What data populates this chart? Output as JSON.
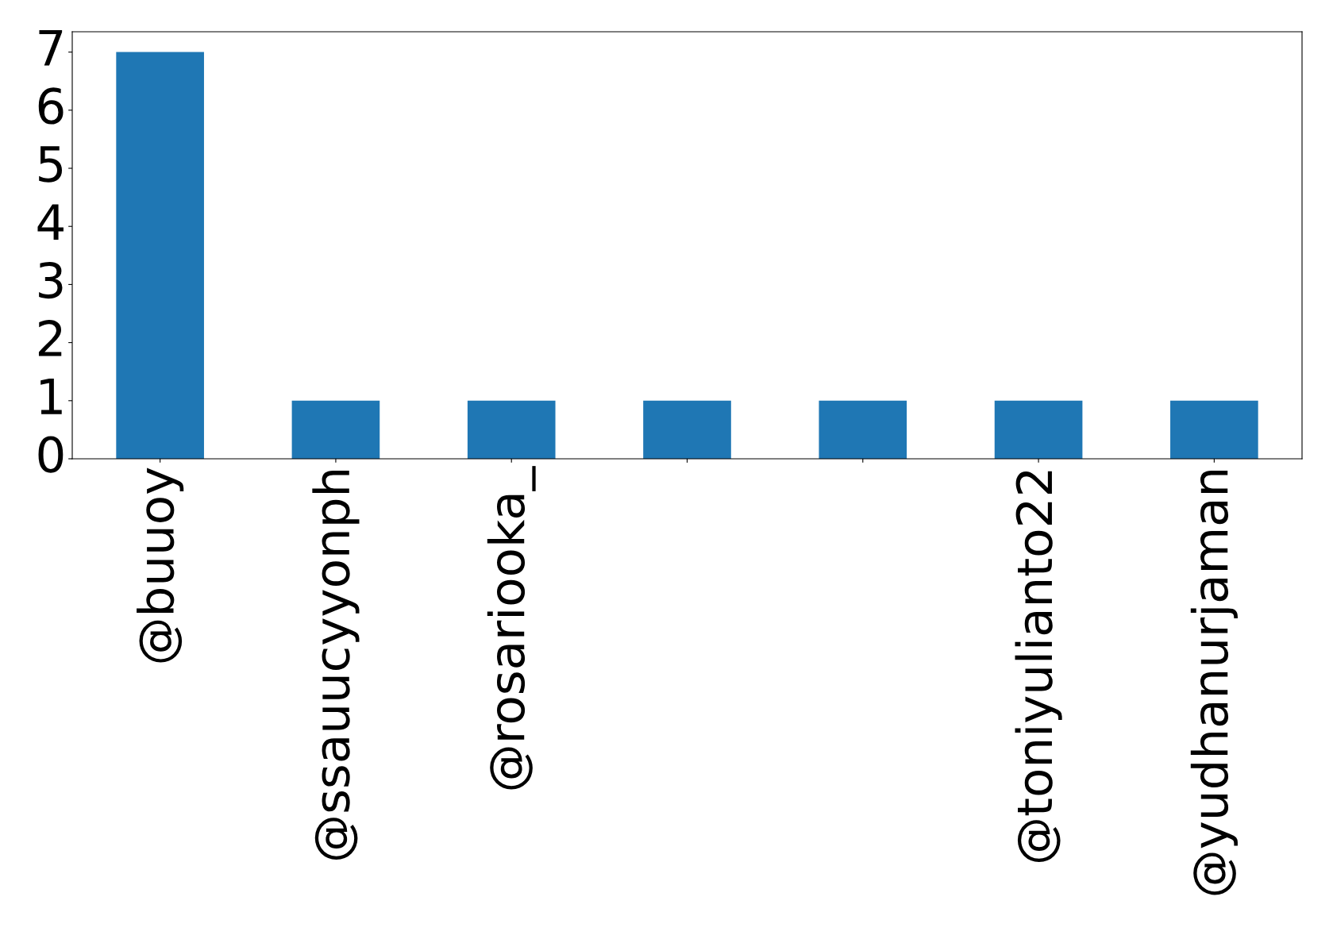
{
  "chart_data": {
    "type": "bar",
    "categories": [
      "@buuoy",
      "@ssauucyyonph",
      "@rosariooka_",
      null,
      null,
      "@toniyulianto22",
      "@yudhanurjaman"
    ],
    "values": [
      7,
      1,
      1,
      1,
      1,
      1,
      1
    ],
    "color": "#1f77b4",
    "ylim": [
      0,
      7.35
    ],
    "yticks": [
      0,
      1,
      2,
      3,
      4,
      5,
      6,
      7
    ],
    "grid": false,
    "legend": false
  }
}
